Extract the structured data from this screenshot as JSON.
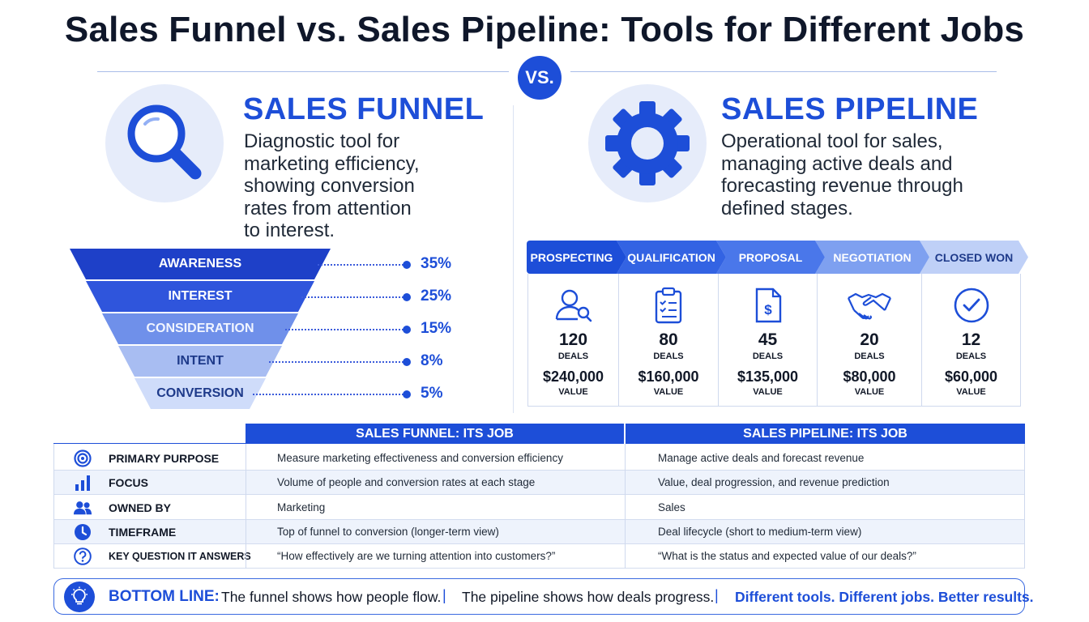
{
  "title": "Sales Funnel vs. Sales Pipeline: Tools for Different Jobs",
  "vs_label": "VS.",
  "funnel": {
    "title": "SALES FUNNEL",
    "description": [
      "Diagnostic tool for",
      "marketing efficiency,",
      "showing conversion",
      "rates from attention",
      "to interest."
    ],
    "icon": "magnifying-glass-icon",
    "stages": [
      {
        "label": "AWARENESS",
        "percent": "35%"
      },
      {
        "label": "INTEREST",
        "percent": "25%"
      },
      {
        "label": "CONSIDERATION",
        "percent": "15%"
      },
      {
        "label": "INTENT",
        "percent": "8%"
      },
      {
        "label": "CONVERSION",
        "percent": "5%"
      }
    ]
  },
  "pipeline": {
    "title": "SALES PIPELINE",
    "description": [
      "Operational tool for sales,",
      "managing active deals and",
      "forecasting revenue through",
      "defined stages."
    ],
    "icon": "gear-icon",
    "stages": [
      {
        "label": "PROSPECTING",
        "deals": "120",
        "deals_label": "DEALS",
        "value": "$240,000",
        "value_label": "VALUE",
        "icon": "person-search-icon"
      },
      {
        "label": "QUALIFICATION",
        "deals": "80",
        "deals_label": "DEALS",
        "value": "$160,000",
        "value_label": "VALUE",
        "icon": "clipboard-checklist-icon"
      },
      {
        "label": "PROPOSAL",
        "deals": "45",
        "deals_label": "DEALS",
        "value": "$135,000",
        "value_label": "VALUE",
        "icon": "dollar-document-icon"
      },
      {
        "label": "NEGOTIATION",
        "deals": "20",
        "deals_label": "DEALS",
        "value": "$80,000",
        "value_label": "VALUE",
        "icon": "handshake-icon"
      },
      {
        "label": "CLOSED WON",
        "deals": "12",
        "deals_label": "DEALS",
        "value": "$60,000",
        "value_label": "VALUE",
        "icon": "check-circle-icon"
      }
    ]
  },
  "comparison": {
    "headers": [
      "SALES FUNNEL: ITS JOB",
      "SALES PIPELINE: ITS JOB"
    ],
    "rows": [
      {
        "label": "PRIMARY PURPOSE",
        "icon": "target-icon",
        "funnel": "Measure marketing effectiveness and conversion efficiency",
        "pipeline": "Manage active deals and forecast revenue"
      },
      {
        "label": "FOCUS",
        "icon": "bar-chart-icon",
        "funnel": "Volume of people and conversion rates at each stage",
        "pipeline": "Value, deal progression, and revenue prediction"
      },
      {
        "label": "OWNED BY",
        "icon": "people-icon",
        "funnel": "Marketing",
        "pipeline": "Sales"
      },
      {
        "label": "TIMEFRAME",
        "icon": "clock-icon",
        "funnel": "Top of funnel to conversion (longer-term view)",
        "pipeline": "Deal lifecycle (short to medium-term view)"
      },
      {
        "label": "KEY QUESTION IT ANSWERS",
        "icon": "question-icon",
        "funnel": "“How effectively are we turning attention into customers?”",
        "pipeline": "“What is the status and expected value of our deals?”"
      }
    ]
  },
  "bottom_line": {
    "label": "BOTTOM LINE:",
    "funnel_text": "The funnel shows how people flow.",
    "separator": "|",
    "pipeline_text": "The pipeline shows how deals progress.",
    "tagline": "Different tools. Different jobs. Better results.",
    "icon": "lightbulb-icon"
  },
  "colors": {
    "accent": "#1d4ed8",
    "funnel_shades": [
      "#1e40c8",
      "#2f55dc",
      "#6f90ea",
      "#a8bdf2",
      "#cfdcfa"
    ],
    "pipeline_shades": [
      "#1d4ed8",
      "#3363e3",
      "#4a77ea",
      "#7ea0f0",
      "#bfd0f7"
    ]
  }
}
